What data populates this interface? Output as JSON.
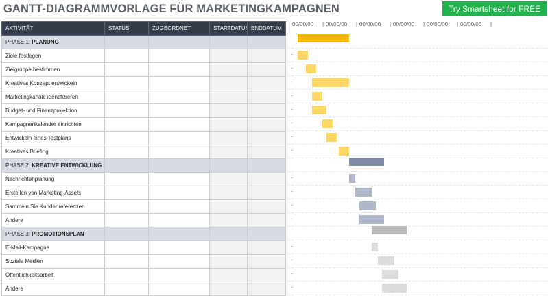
{
  "title": "GANTT-DIAGRAMMVORLAGE FÜR MARKETINGKAMPAGNEN",
  "cta_label": "Try Smartsheet for FREE",
  "columns": [
    "AKTIVITÄT",
    "STATUS",
    "ZUGEORDNET",
    "STARTDATUM",
    "ENDDATUM"
  ],
  "date_ticks": [
    "00/00/00",
    "00/00/00",
    "00/00/00",
    "00/00/00",
    "00/00/00",
    "00/00/00"
  ],
  "colors": {
    "phase1_header": "#f4b800",
    "phase1_task": "#fcd765",
    "phase2_header": "#7f8ea6",
    "phase2_task": "#aeb8ca",
    "phase3_header": "#b8b8b8",
    "phase3_task": "#dcdcdc"
  },
  "rows": [
    {
      "phase": true,
      "prefix": "PHASE 1: ",
      "name": "PLANUNG",
      "group": 1,
      "start": 0.0,
      "end": 0.25
    },
    {
      "phase": false,
      "name": "Ziele festlegen",
      "group": 1,
      "start": 0.0,
      "end": 0.05
    },
    {
      "phase": false,
      "name": "Zielgruppe bestimmen",
      "group": 1,
      "start": 0.04,
      "end": 0.09
    },
    {
      "phase": false,
      "name": "Kreatives Konzept entwickeln",
      "group": 1,
      "start": 0.07,
      "end": 0.25
    },
    {
      "phase": false,
      "name": "Marketingkanäle identifizieren",
      "group": 1,
      "start": 0.07,
      "end": 0.12
    },
    {
      "phase": false,
      "name": "Budget- und Finanzprojektion",
      "group": 1,
      "start": 0.07,
      "end": 0.14
    },
    {
      "phase": false,
      "name": "Kampagnenkalender einrichten",
      "group": 1,
      "start": 0.12,
      "end": 0.17
    },
    {
      "phase": false,
      "name": "Entwickeln eines Testplans",
      "group": 1,
      "start": 0.14,
      "end": 0.19
    },
    {
      "phase": false,
      "name": "Kreatives Briefing",
      "group": 1,
      "start": 0.2,
      "end": 0.25
    },
    {
      "phase": true,
      "prefix": "PHASE 2: ",
      "name": "KREATIVE ENTWICKLUNG",
      "group": 2,
      "start": 0.25,
      "end": 0.42
    },
    {
      "phase": false,
      "name": "Nachrichtenplanung",
      "group": 2,
      "start": 0.25,
      "end": 0.28
    },
    {
      "phase": false,
      "name": "Erstellen von Marketing-Assets",
      "group": 2,
      "start": 0.28,
      "end": 0.36
    },
    {
      "phase": false,
      "name": "Sammeln Sie Kundenreferenzen",
      "group": 2,
      "start": 0.3,
      "end": 0.38
    },
    {
      "phase": false,
      "name": "Andere",
      "group": 2,
      "start": 0.3,
      "end": 0.42
    },
    {
      "phase": true,
      "prefix": "PHASE 3: ",
      "name": "PROMOTIONSPLAN",
      "group": 3,
      "start": 0.36,
      "end": 0.53
    },
    {
      "phase": false,
      "name": "E-Mail-Kampagne",
      "group": 3,
      "start": 0.36,
      "end": 0.39
    },
    {
      "phase": false,
      "name": "Soziale Medien",
      "group": 3,
      "start": 0.39,
      "end": 0.47
    },
    {
      "phase": false,
      "name": "Öffentlichkeitsarbeit",
      "group": 3,
      "start": 0.41,
      "end": 0.49
    },
    {
      "phase": false,
      "name": "Andere",
      "group": 3,
      "start": 0.41,
      "end": 0.53
    }
  ]
}
